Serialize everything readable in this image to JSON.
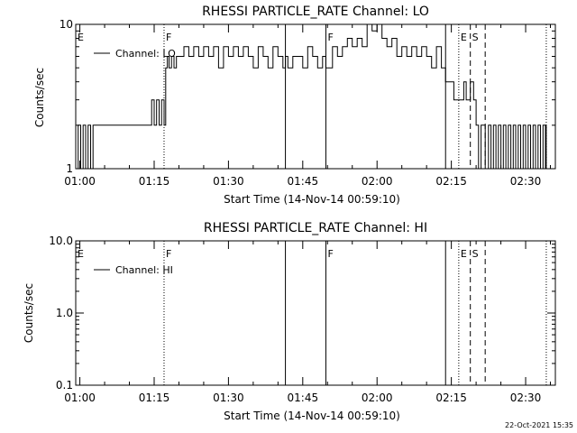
{
  "footer_timestamp": "22-Oct-2021 15:35",
  "chart_data": [
    {
      "type": "line",
      "title": "RHESSI PARTICLE_RATE Channel: LO",
      "xlabel": "Start Time (14-Nov-14 00:59:10)",
      "ylabel": "Counts/sec",
      "yscale": "log",
      "ylim": [
        1,
        10
      ],
      "y_tick_labels": [
        "1",
        "10"
      ],
      "xlim": [
        "00:59:10",
        "02:36:00"
      ],
      "x_tick_labels": [
        "01:00",
        "01:15",
        "01:30",
        "01:45",
        "02:00",
        "02:15",
        "02:30"
      ],
      "legend": {
        "position": "top-left",
        "entries": [
          "Channel: LO"
        ]
      },
      "event_markers": [
        {
          "label": "E",
          "time": "00:59:10",
          "style": "none"
        },
        {
          "label": "F",
          "time": "01:17:00",
          "style": "dotted"
        },
        {
          "label": "",
          "time": "01:41:30",
          "style": "solid"
        },
        {
          "label": "F",
          "time": "01:49:40",
          "style": "solid"
        },
        {
          "label": "",
          "time": "02:13:50",
          "style": "solid"
        },
        {
          "label": "E",
          "time": "02:16:30",
          "style": "dotted"
        },
        {
          "label": "S",
          "time": "02:18:50",
          "style": "dashed"
        },
        {
          "label": "",
          "time": "02:21:50",
          "style": "dashed"
        },
        {
          "label": "",
          "time": "02:34:10",
          "style": "dotted"
        }
      ],
      "series": [
        {
          "name": "Channel: LO",
          "x": [
            "00:59:10",
            "00:59:40",
            "01:00:10",
            "01:00:40",
            "01:01:10",
            "01:01:40",
            "01:02:10",
            "01:02:40",
            "01:03:00",
            "01:08:00",
            "01:12:00",
            "01:14:00",
            "01:14:30",
            "01:15:00",
            "01:15:30",
            "01:16:00",
            "01:16:30",
            "01:17:00",
            "01:17:20",
            "01:17:40",
            "01:18:00",
            "01:18:30",
            "01:19:00",
            "01:19:30",
            "01:20:00",
            "01:21:00",
            "01:22:00",
            "01:23:00",
            "01:24:00",
            "01:25:00",
            "01:26:00",
            "01:27:00",
            "01:28:00",
            "01:29:00",
            "01:30:00",
            "01:31:00",
            "01:32:00",
            "01:33:00",
            "01:34:00",
            "01:35:00",
            "01:36:00",
            "01:37:00",
            "01:38:00",
            "01:39:00",
            "01:40:00",
            "01:41:00",
            "01:41:30",
            "01:42:00",
            "01:43:00",
            "01:44:00",
            "01:45:00",
            "01:46:00",
            "01:47:00",
            "01:48:00",
            "01:49:00",
            "01:49:40",
            "01:51:00",
            "01:52:00",
            "01:53:00",
            "01:54:00",
            "01:55:00",
            "01:56:00",
            "01:57:00",
            "01:58:00",
            "01:59:00",
            "02:00:00",
            "02:01:00",
            "02:02:00",
            "02:03:00",
            "02:04:00",
            "02:05:00",
            "02:06:00",
            "02:07:00",
            "02:08:00",
            "02:09:00",
            "02:10:00",
            "02:11:00",
            "02:12:00",
            "02:13:00",
            "02:13:50",
            "02:14:30",
            "02:15:30",
            "02:16:30",
            "02:17:30",
            "02:18:00",
            "02:18:50",
            "02:19:30",
            "02:20:00",
            "02:20:30",
            "02:21:00",
            "02:21:50",
            "02:22:30",
            "02:23:00",
            "02:23:30",
            "02:24:00",
            "02:24:30",
            "02:25:00",
            "02:25:30",
            "02:26:00",
            "02:26:30",
            "02:27:00",
            "02:27:30",
            "02:28:00",
            "02:28:30",
            "02:29:00",
            "02:29:30",
            "02:30:00",
            "02:30:30",
            "02:31:00",
            "02:31:30",
            "02:32:00",
            "02:32:30",
            "02:33:00",
            "02:33:30",
            "02:34:00",
            "02:34:10"
          ],
          "y": [
            1,
            2,
            1,
            2,
            1,
            2,
            1,
            2,
            2,
            2,
            2,
            2,
            3,
            2,
            3,
            2,
            3,
            2,
            5,
            6,
            5,
            6,
            5,
            6,
            6,
            7,
            6,
            7,
            6,
            7,
            6,
            7,
            5,
            7,
            6,
            7,
            6,
            7,
            6,
            5,
            7,
            6,
            5,
            7,
            6,
            5,
            6,
            5,
            6,
            6,
            5,
            7,
            6,
            5,
            6,
            5,
            7,
            6,
            7,
            8,
            7,
            8,
            7,
            10,
            9,
            10,
            8,
            7,
            8,
            6,
            7,
            6,
            7,
            6,
            7,
            6,
            5,
            7,
            5,
            4,
            4,
            3,
            3,
            4,
            3,
            4,
            3,
            2,
            1,
            2,
            1,
            2,
            1,
            2,
            1,
            2,
            1,
            2,
            1,
            2,
            1,
            2,
            1,
            2,
            1,
            2,
            1,
            2,
            1,
            2,
            1,
            2,
            1,
            2,
            1,
            2
          ]
        }
      ]
    },
    {
      "type": "line",
      "title": "RHESSI PARTICLE_RATE Channel: HI",
      "xlabel": "Start Time (14-Nov-14 00:59:10)",
      "ylabel": "Counts/sec",
      "yscale": "log",
      "ylim": [
        0.1,
        10
      ],
      "y_tick_labels": [
        "0.1",
        "1.0",
        "10.0"
      ],
      "xlim": [
        "00:59:10",
        "02:36:00"
      ],
      "x_tick_labels": [
        "01:00",
        "01:15",
        "01:30",
        "01:45",
        "02:00",
        "02:15",
        "02:30"
      ],
      "legend": {
        "position": "top-left",
        "entries": [
          "Channel: HI"
        ]
      },
      "event_markers": [
        {
          "label": "E",
          "time": "00:59:10",
          "style": "none"
        },
        {
          "label": "F",
          "time": "01:17:00",
          "style": "dotted"
        },
        {
          "label": "",
          "time": "01:41:30",
          "style": "solid"
        },
        {
          "label": "F",
          "time": "01:49:40",
          "style": "solid"
        },
        {
          "label": "",
          "time": "02:13:50",
          "style": "solid"
        },
        {
          "label": "E",
          "time": "02:16:30",
          "style": "dotted"
        },
        {
          "label": "S",
          "time": "02:18:50",
          "style": "dashed"
        },
        {
          "label": "",
          "time": "02:21:50",
          "style": "dashed"
        },
        {
          "label": "",
          "time": "02:34:10",
          "style": "dotted"
        }
      ],
      "series": [
        {
          "name": "Channel: HI",
          "x": [],
          "y": []
        }
      ]
    }
  ]
}
